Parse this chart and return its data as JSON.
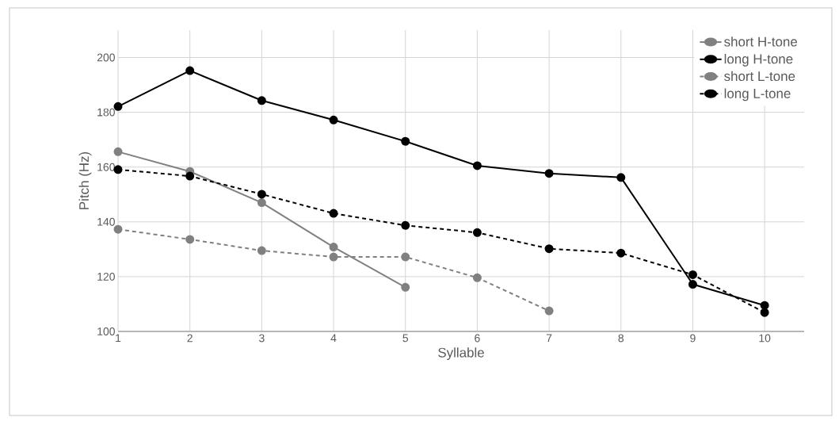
{
  "chart_data": {
    "type": "line",
    "xlabel": "Syllable",
    "ylabel": "Pitch (Hz)",
    "categories": [
      "1",
      "2",
      "3",
      "4",
      "5",
      "6",
      "7",
      "8",
      "9",
      "10"
    ],
    "ylim": [
      100,
      210
    ],
    "yticks": [
      100,
      120,
      140,
      160,
      180,
      200
    ],
    "grid": true,
    "legend": "top right",
    "marker": "circle",
    "series": [
      {
        "name": "short H-tone",
        "color": "#808080",
        "line_style": "solid",
        "values": [
          165.6,
          158.4,
          147.0,
          130.8,
          116.1,
          null,
          null,
          null,
          null,
          null
        ]
      },
      {
        "name": "long H-tone",
        "color": "#000000",
        "line_style": "solid",
        "values": [
          182.1,
          195.2,
          184.3,
          177.2,
          169.4,
          160.5,
          157.7,
          156.2,
          117.2,
          109.5
        ]
      },
      {
        "name": "short L-tone",
        "color": "#808080",
        "line_style": "dashed",
        "values": [
          137.3,
          133.6,
          129.5,
          127.2,
          127.2,
          119.6,
          107.5,
          null,
          null,
          null
        ]
      },
      {
        "name": "long L-tone",
        "color": "#000000",
        "line_style": "dashed",
        "values": [
          159.1,
          156.7,
          150.1,
          143.1,
          138.7,
          136.1,
          130.2,
          128.6,
          120.7,
          106.9
        ]
      }
    ]
  }
}
